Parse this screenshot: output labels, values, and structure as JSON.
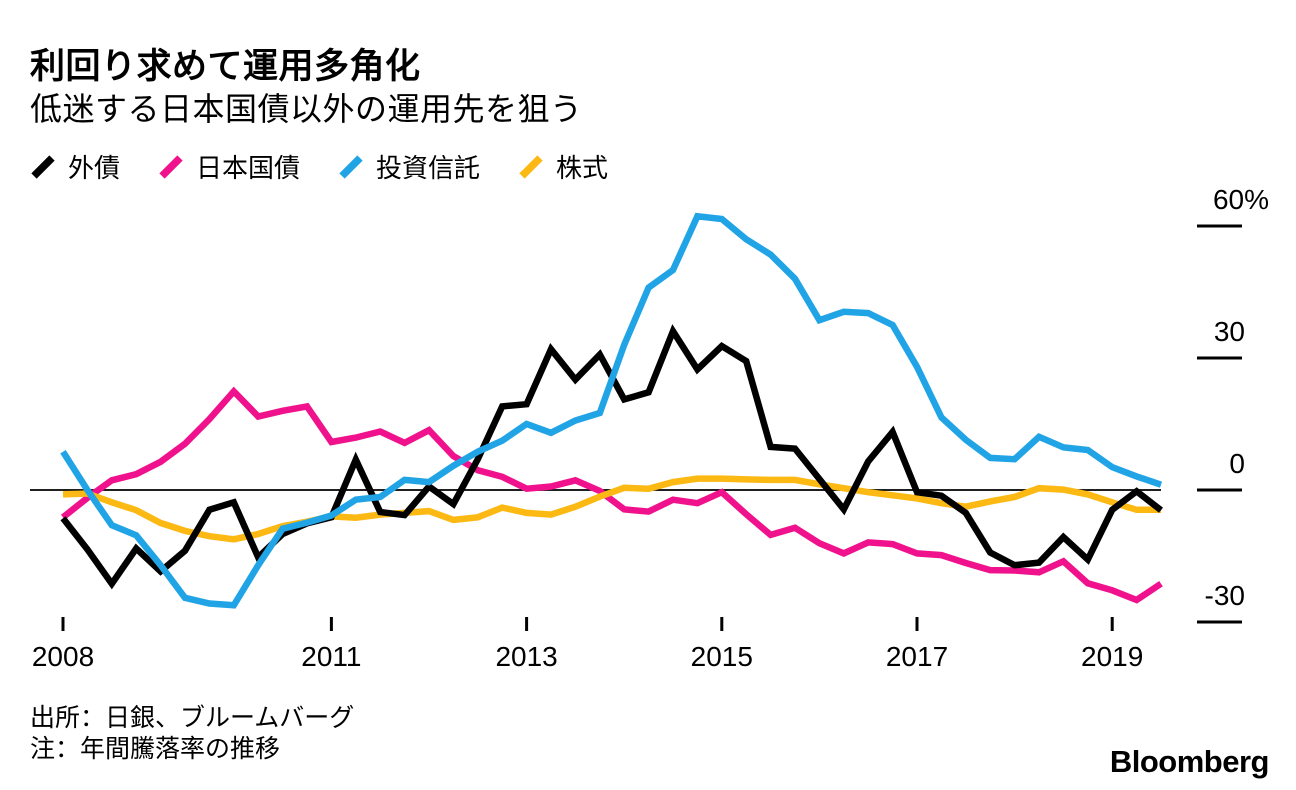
{
  "header": {
    "title": "利回り求めて運用多角化",
    "subtitle": "低迷する日本国債以外の運用先を狙う"
  },
  "footer": {
    "source": "出所：日銀、ブルームバーグ",
    "note": "注：年間騰落率の推移",
    "logo": "Bloomberg"
  },
  "chart_data": {
    "type": "line",
    "x_unit": "quarterly",
    "x_range": [
      "2008-Q2",
      "2019-Q3"
    ],
    "ylabel": "年間騰落率（%）",
    "ylim": [
      -33,
      66
    ],
    "grid": false,
    "legend_position": "top",
    "zero_line": true,
    "x_ticks": [
      {
        "label": "2008",
        "index": 0
      },
      {
        "label": "2011",
        "index": 11
      },
      {
        "label": "2013",
        "index": 19
      },
      {
        "label": "2015",
        "index": 27
      },
      {
        "label": "2017",
        "index": 35
      },
      {
        "label": "2019",
        "index": 43
      }
    ],
    "y_ticks": [
      {
        "label": "60%",
        "value": 60
      },
      {
        "label": "30",
        "value": 30
      },
      {
        "label": "0",
        "value": 0
      },
      {
        "label": "-30",
        "value": -30
      }
    ],
    "series": [
      {
        "name": "外債",
        "color": "#000000",
        "values": [
          -6.4,
          -13.5,
          -21.3,
          -13.3,
          -18.5,
          -13.8,
          -4.5,
          -2.8,
          -15.3,
          -10.0,
          -7.6,
          -6.2,
          6.9,
          -5.0,
          -5.7,
          0.8,
          -3.2,
          7.0,
          19.0,
          19.5,
          32.0,
          25.1,
          30.8,
          20.6,
          22.2,
          36.1,
          27.4,
          32.7,
          29.3,
          9.8,
          9.4,
          2.5,
          -4.4,
          6.5,
          13.2,
          -0.5,
          -1.3,
          -5.2,
          -14.2,
          -17.1,
          -16.5,
          -10.7,
          -15.8,
          -4.5,
          -0.3,
          -4.6
        ]
      },
      {
        "name": "日本国債",
        "color": "#F0128D",
        "values": [
          -6.2,
          -1.8,
          2.2,
          3.6,
          6.4,
          10.5,
          16.1,
          22.4,
          16.7,
          18.0,
          19.0,
          10.9,
          11.9,
          13.3,
          10.7,
          13.6,
          7.7,
          4.5,
          3.0,
          0.3,
          0.8,
          2.2,
          -0.2,
          -4.4,
          -4.9,
          -2.2,
          -3.0,
          -0.5,
          -5.5,
          -10.2,
          -8.6,
          -12.1,
          -14.4,
          -11.9,
          -12.3,
          -14.4,
          -14.8,
          -16.6,
          -18.2,
          -18.3,
          -18.7,
          -16.2,
          -21.2,
          -22.8,
          -25.0,
          -21.3
        ]
      },
      {
        "name": "投資信託",
        "color": "#21A4E6",
        "values": [
          8.7,
          0.0,
          -8.0,
          -10.3,
          -17.1,
          -24.5,
          -25.8,
          -26.2,
          -17.1,
          -8.8,
          -7.4,
          -5.8,
          -2.2,
          -1.6,
          2.3,
          1.8,
          5.5,
          8.7,
          11.2,
          15.0,
          13.0,
          15.8,
          17.5,
          33.0,
          46.0,
          50.0,
          62.2,
          61.6,
          57.0,
          53.5,
          48.0,
          38.6,
          40.5,
          40.2,
          37.5,
          28.0,
          16.5,
          11.4,
          7.3,
          7.0,
          12.1,
          9.7,
          9.1,
          5.2,
          3.1,
          1.2
        ]
      },
      {
        "name": "株式",
        "color": "#FCB813",
        "values": [
          -1.0,
          -0.8,
          -2.8,
          -4.6,
          -7.5,
          -9.3,
          -10.5,
          -11.2,
          -10.0,
          -8.2,
          -7.2,
          -6.0,
          -6.3,
          -5.6,
          -5.2,
          -4.8,
          -6.8,
          -6.2,
          -4.0,
          -5.2,
          -5.6,
          -3.8,
          -1.5,
          0.5,
          0.3,
          1.8,
          2.6,
          2.6,
          2.4,
          2.3,
          2.3,
          1.3,
          0.4,
          -0.5,
          -1.2,
          -1.9,
          -3.0,
          -3.8,
          -2.6,
          -1.6,
          0.4,
          0.1,
          -1.0,
          -2.8,
          -4.5,
          -4.5
        ]
      }
    ]
  }
}
